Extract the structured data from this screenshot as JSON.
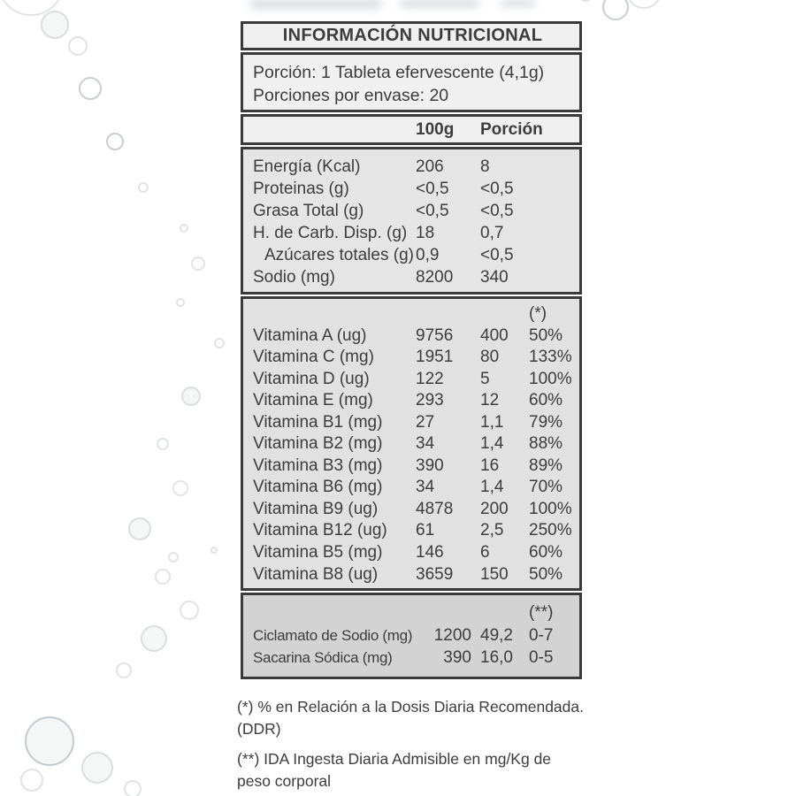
{
  "label": {
    "title": "INFORMACIÓN NUTRICIONAL",
    "serving": {
      "serving_size": "Porción: 1 Tableta efervescente (4,1g)",
      "servings_per_container": "Porciones por envase: 20"
    },
    "columns": {
      "per_100g": "100g",
      "per_portion": "Porción"
    },
    "macros": [
      {
        "label": "Energía (Kcal)",
        "per100g": "206",
        "portion": "8"
      },
      {
        "label": "Proteinas (g)",
        "per100g": "<0,5",
        "portion": "<0,5"
      },
      {
        "label": "Grasa Total (g)",
        "per100g": "<0,5",
        "portion": "<0,5"
      },
      {
        "label": "H. de Carb. Disp. (g)",
        "per100g": "18",
        "portion": "0,7"
      },
      {
        "label": "Azúcares totales (g)",
        "per100g": "0,9",
        "portion": "<0,5",
        "indent": true
      },
      {
        "label": "Sodio (mg)",
        "per100g": "8200",
        "portion": "340"
      }
    ],
    "ddr_marker": "(*)",
    "vitamins": [
      {
        "label": "Vitamina A (ug)",
        "per100g": "9756",
        "portion": "400",
        "ddr": "50%"
      },
      {
        "label": "Vitamina C (mg)",
        "per100g": "1951",
        "portion": "80",
        "ddr": "133%"
      },
      {
        "label": "Vitamina D (ug)",
        "per100g": "122",
        "portion": "5",
        "ddr": "100%"
      },
      {
        "label": "Vitamina E (mg)",
        "per100g": "293",
        "portion": "12",
        "ddr": "60%"
      },
      {
        "label": "Vitamina B1 (mg)",
        "per100g": "27",
        "portion": "1,1",
        "ddr": "79%"
      },
      {
        "label": "Vitamina B2 (mg)",
        "per100g": "34",
        "portion": "1,4",
        "ddr": "88%"
      },
      {
        "label": "Vitamina B3 (mg)",
        "per100g": "390",
        "portion": "16",
        "ddr": "89%"
      },
      {
        "label": "Vitamina B6 (mg)",
        "per100g": "34",
        "portion": "1,4",
        "ddr": "70%"
      },
      {
        "label": "Vitamina B9 (ug)",
        "per100g": "4878",
        "portion": "200",
        "ddr": "100%"
      },
      {
        "label": "Vitamina B12 (ug)",
        "per100g": "61",
        "portion": "2,5",
        "ddr": "250%"
      },
      {
        "label": "Vitamina B5 (mg)",
        "per100g": "146",
        "portion": "6",
        "ddr": "60%"
      },
      {
        "label": "Vitamina B8 (ug)",
        "per100g": "3659",
        "portion": "150",
        "ddr": "50%"
      }
    ],
    "ida_marker": "(**)",
    "sweeteners": [
      {
        "label": "Ciclamato de Sodio (mg)",
        "per100g": "1200",
        "portion": "49,2",
        "ida": "0-7"
      },
      {
        "label": "Sacarina Sódica (mg)",
        "per100g": "390",
        "portion": "16,0",
        "ida": "0-5"
      }
    ],
    "footnotes": [
      {
        "lines": [
          "(*) % en Relación a la Dosis Diaria Recomendada.",
          "(DDR)"
        ]
      },
      {
        "lines": [
          "(**) IDA Ingesta Diaria Admisible en mg/Kg de",
          "peso corporal"
        ]
      }
    ],
    "colors": {
      "border": "#3a3a3a",
      "text": "#3c3c3c",
      "panel_light": "#f0f0f0",
      "panel_mid": "#e5e5e5",
      "panel_vitamins": "#e1e1e1",
      "panel_dark": "#d3d3d3"
    }
  }
}
